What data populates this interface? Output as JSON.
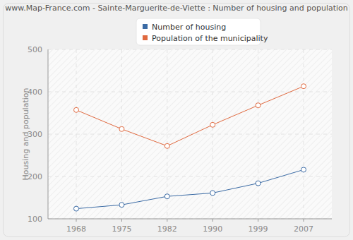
{
  "chart_data": {
    "type": "line",
    "title": "www.Map-France.com - Sainte-Marguerite-de-Viette : Number of housing and population",
    "y_label": "Housing and population",
    "categories": [
      "1968",
      "1975",
      "1982",
      "1990",
      "1999",
      "2007"
    ],
    "series": [
      {
        "name": "Number of housing",
        "color": "#3b6ba5",
        "values": [
          124,
          133,
          153,
          161,
          184,
          216
        ]
      },
      {
        "name": "Population of the municipality",
        "color": "#e0693f",
        "values": [
          357,
          312,
          272,
          322,
          368,
          413
        ]
      }
    ],
    "ylim": [
      100,
      500
    ],
    "yticks": [
      100,
      200,
      300,
      400,
      500
    ],
    "grid": true,
    "legend": "top",
    "marker": "circle"
  }
}
